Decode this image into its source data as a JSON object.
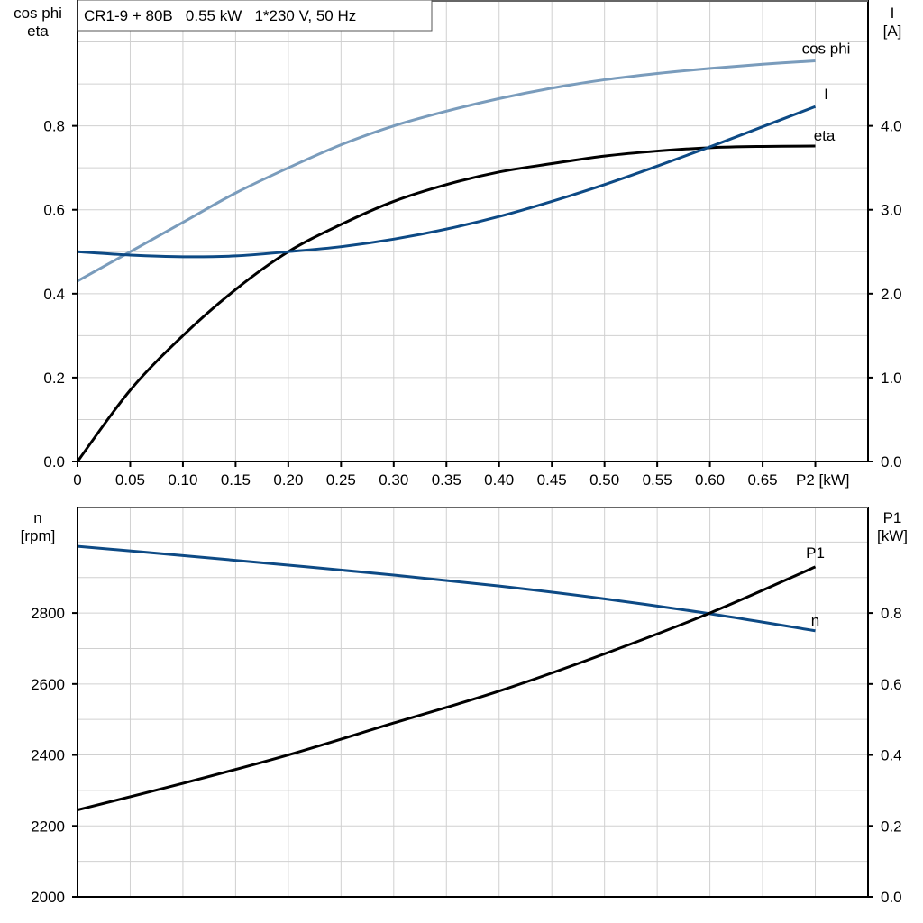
{
  "title": "CR1-9 + 80B   0.55 kW   1*230 V, 50 Hz",
  "colors": {
    "cos_phi": "#7a9cbc",
    "I": "#0d4a85",
    "eta": "#000000",
    "n": "#0d4a85",
    "P1": "#000000",
    "grid": "#d0d0d0"
  },
  "chart_data": [
    {
      "type": "line",
      "xlabel": "P2 [kW]",
      "xlim": [
        0,
        0.75
      ],
      "x_ticks": [
        "0",
        "0.05",
        "0.10",
        "0.15",
        "0.20",
        "0.25",
        "0.30",
        "0.35",
        "0.40",
        "0.45",
        "0.50",
        "0.55",
        "0.60",
        "0.65"
      ],
      "ylabel_left": [
        "cos phi",
        "eta"
      ],
      "ylim_left": [
        0,
        1.1
      ],
      "y_ticks_left": [
        "0.0",
        "0.2",
        "0.4",
        "0.6",
        "0.8"
      ],
      "ylabel_right": [
        "I",
        "[A]"
      ],
      "ylim_right": [
        0,
        5.5
      ],
      "y_ticks_right": [
        "0.0",
        "1.0",
        "2.0",
        "3.0",
        "4.0"
      ],
      "grid": true,
      "x": [
        0,
        0.05,
        0.1,
        0.15,
        0.2,
        0.25,
        0.3,
        0.35,
        0.4,
        0.45,
        0.5,
        0.55,
        0.6,
        0.65,
        0.7
      ],
      "series": [
        {
          "name": "cos phi",
          "axis": "left",
          "values": [
            0.43,
            0.5,
            0.57,
            0.64,
            0.7,
            0.755,
            0.8,
            0.835,
            0.865,
            0.89,
            0.91,
            0.925,
            0.937,
            0.947,
            0.955
          ]
        },
        {
          "name": "eta",
          "axis": "left",
          "values": [
            0.0,
            0.17,
            0.3,
            0.41,
            0.5,
            0.565,
            0.62,
            0.66,
            0.69,
            0.71,
            0.728,
            0.74,
            0.748,
            0.751,
            0.752
          ]
        },
        {
          "name": "I",
          "axis": "right",
          "values": [
            2.5,
            2.46,
            2.44,
            2.45,
            2.5,
            2.56,
            2.65,
            2.77,
            2.92,
            3.1,
            3.3,
            3.52,
            3.75,
            3.99,
            4.23
          ]
        }
      ]
    },
    {
      "type": "line",
      "xlim": [
        0,
        0.75
      ],
      "ylabel_left": [
        "n",
        "[rpm]"
      ],
      "ylim_left": [
        2000,
        3100
      ],
      "y_ticks_left": [
        "2000",
        "2200",
        "2400",
        "2600",
        "2800"
      ],
      "ylabel_right": [
        "P1",
        "[kW]"
      ],
      "ylim_right": [
        0,
        1.1
      ],
      "y_ticks_right": [
        "0.0",
        "0.2",
        "0.4",
        "0.6",
        "0.8"
      ],
      "grid": true,
      "x": [
        0,
        0.1,
        0.2,
        0.3,
        0.4,
        0.5,
        0.6,
        0.7
      ],
      "series": [
        {
          "name": "n",
          "axis": "left",
          "values": [
            2988,
            2962,
            2935,
            2907,
            2876,
            2840,
            2798,
            2750
          ]
        },
        {
          "name": "P1",
          "axis": "right",
          "values": [
            0.245,
            0.32,
            0.4,
            0.49,
            0.58,
            0.685,
            0.8,
            0.93
          ]
        }
      ]
    }
  ]
}
